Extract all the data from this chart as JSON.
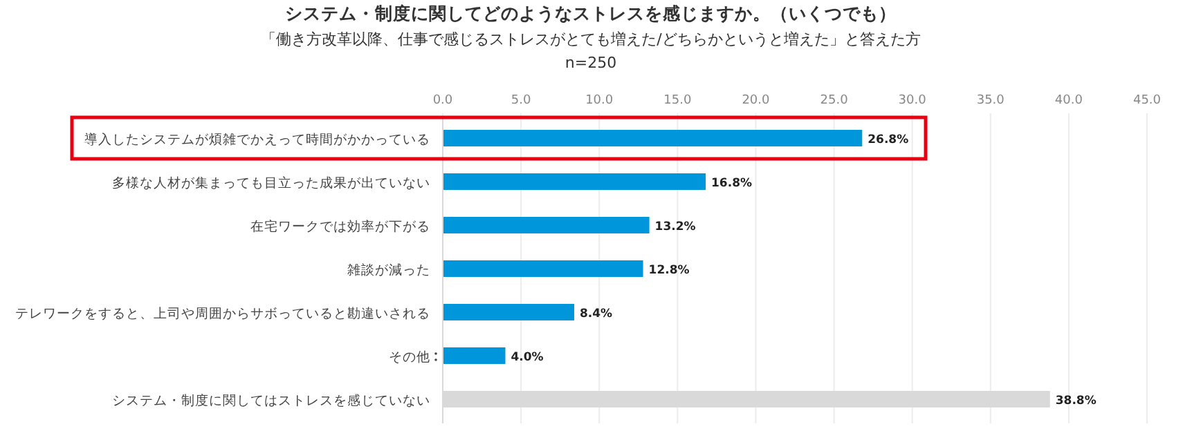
{
  "chart_data": {
    "type": "bar",
    "orientation": "horizontal",
    "title": "システム・制度に関してどのようなストレスを感じますか。（いくつでも）",
    "subtitle": "「働き方改革以降、仕事で感じるストレスがとても増えた/どちらかというと増えた」と答えた方",
    "annotations": [
      "n=250"
    ],
    "categories": [
      "導入したシステムが煩雑でかえって時間がかかっている",
      "多様な人材が集まっても目立った成果が出ていない",
      "在宅ワークでは効率が下がる",
      "雑談が減った",
      "テレワークをすると、上司や周囲からサボっていると勘違いされる",
      "その他",
      "システム・制度に関してはストレスを感じていない"
    ],
    "values": [
      26.8,
      16.8,
      13.2,
      12.8,
      8.4,
      4.0,
      38.8
    ],
    "colors": [
      "#0096db",
      "#0096db",
      "#0096db",
      "#0096db",
      "#0096db",
      "#0096db",
      "#d9d9d9"
    ],
    "value_labels": [
      "26.8%",
      "16.8%",
      "13.2%",
      "12.8%",
      "8.4%",
      "4.0%",
      "38.8%"
    ],
    "xlim": [
      0,
      45
    ],
    "grid": "x",
    "xticks": [
      "0.0",
      "5.0",
      "10.0",
      "15.0",
      "20.0",
      "25.0",
      "30.0",
      "35.0",
      "40.0",
      "45.0"
    ]
  }
}
